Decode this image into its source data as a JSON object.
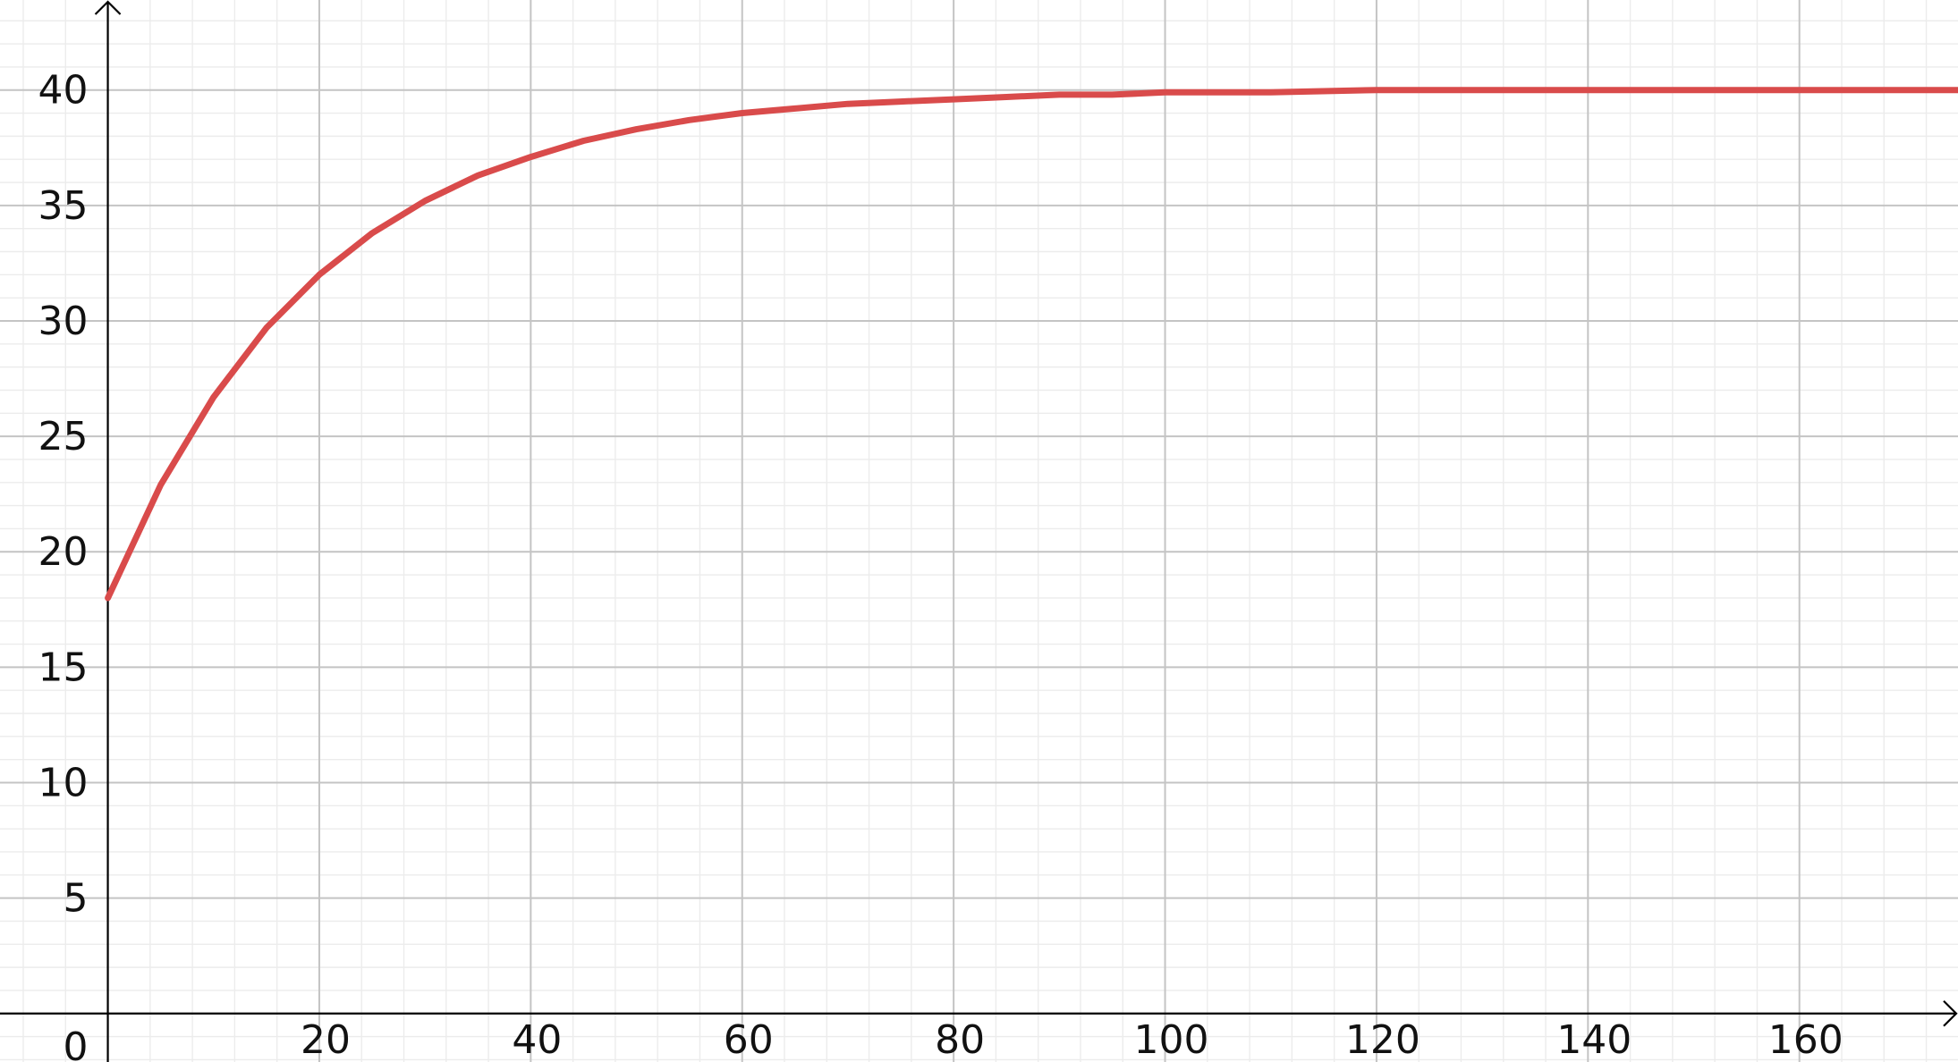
{
  "chart_data": {
    "type": "line",
    "title": "",
    "xlabel": "",
    "ylabel": "",
    "xlim": [
      -10.2,
      175
    ],
    "ylim": [
      -2.1,
      43.9
    ],
    "x_ticks": [
      20,
      40,
      60,
      80,
      100,
      120,
      140,
      160
    ],
    "y_ticks": [
      5,
      10,
      15,
      20,
      25,
      30,
      35,
      40
    ],
    "x_tick_labels": [
      "20",
      "40",
      "60",
      "80",
      "100",
      "120",
      "140",
      "160"
    ],
    "y_tick_labels": [
      "5",
      "10",
      "15",
      "20",
      "25",
      "30",
      "35",
      "40"
    ],
    "origin_label": "0",
    "minor_x_step": 4,
    "minor_y_step": 1,
    "grid": true,
    "series": [
      {
        "color": "#d94b4b",
        "x": [
          0,
          5,
          10,
          15,
          20,
          25,
          30,
          35,
          40,
          45,
          50,
          55,
          60,
          65,
          70,
          75,
          80,
          85,
          90,
          95,
          100,
          110,
          120,
          130,
          140,
          150,
          160,
          170,
          175
        ],
        "y": [
          18.0,
          22.9,
          26.7,
          29.7,
          32.0,
          33.8,
          35.2,
          36.3,
          37.1,
          37.8,
          38.3,
          38.7,
          39.0,
          39.2,
          39.4,
          39.5,
          39.6,
          39.7,
          39.8,
          39.8,
          39.9,
          39.9,
          40.0,
          40.0,
          40.0,
          40.0,
          40.0,
          40.0,
          40.0
        ]
      }
    ]
  }
}
